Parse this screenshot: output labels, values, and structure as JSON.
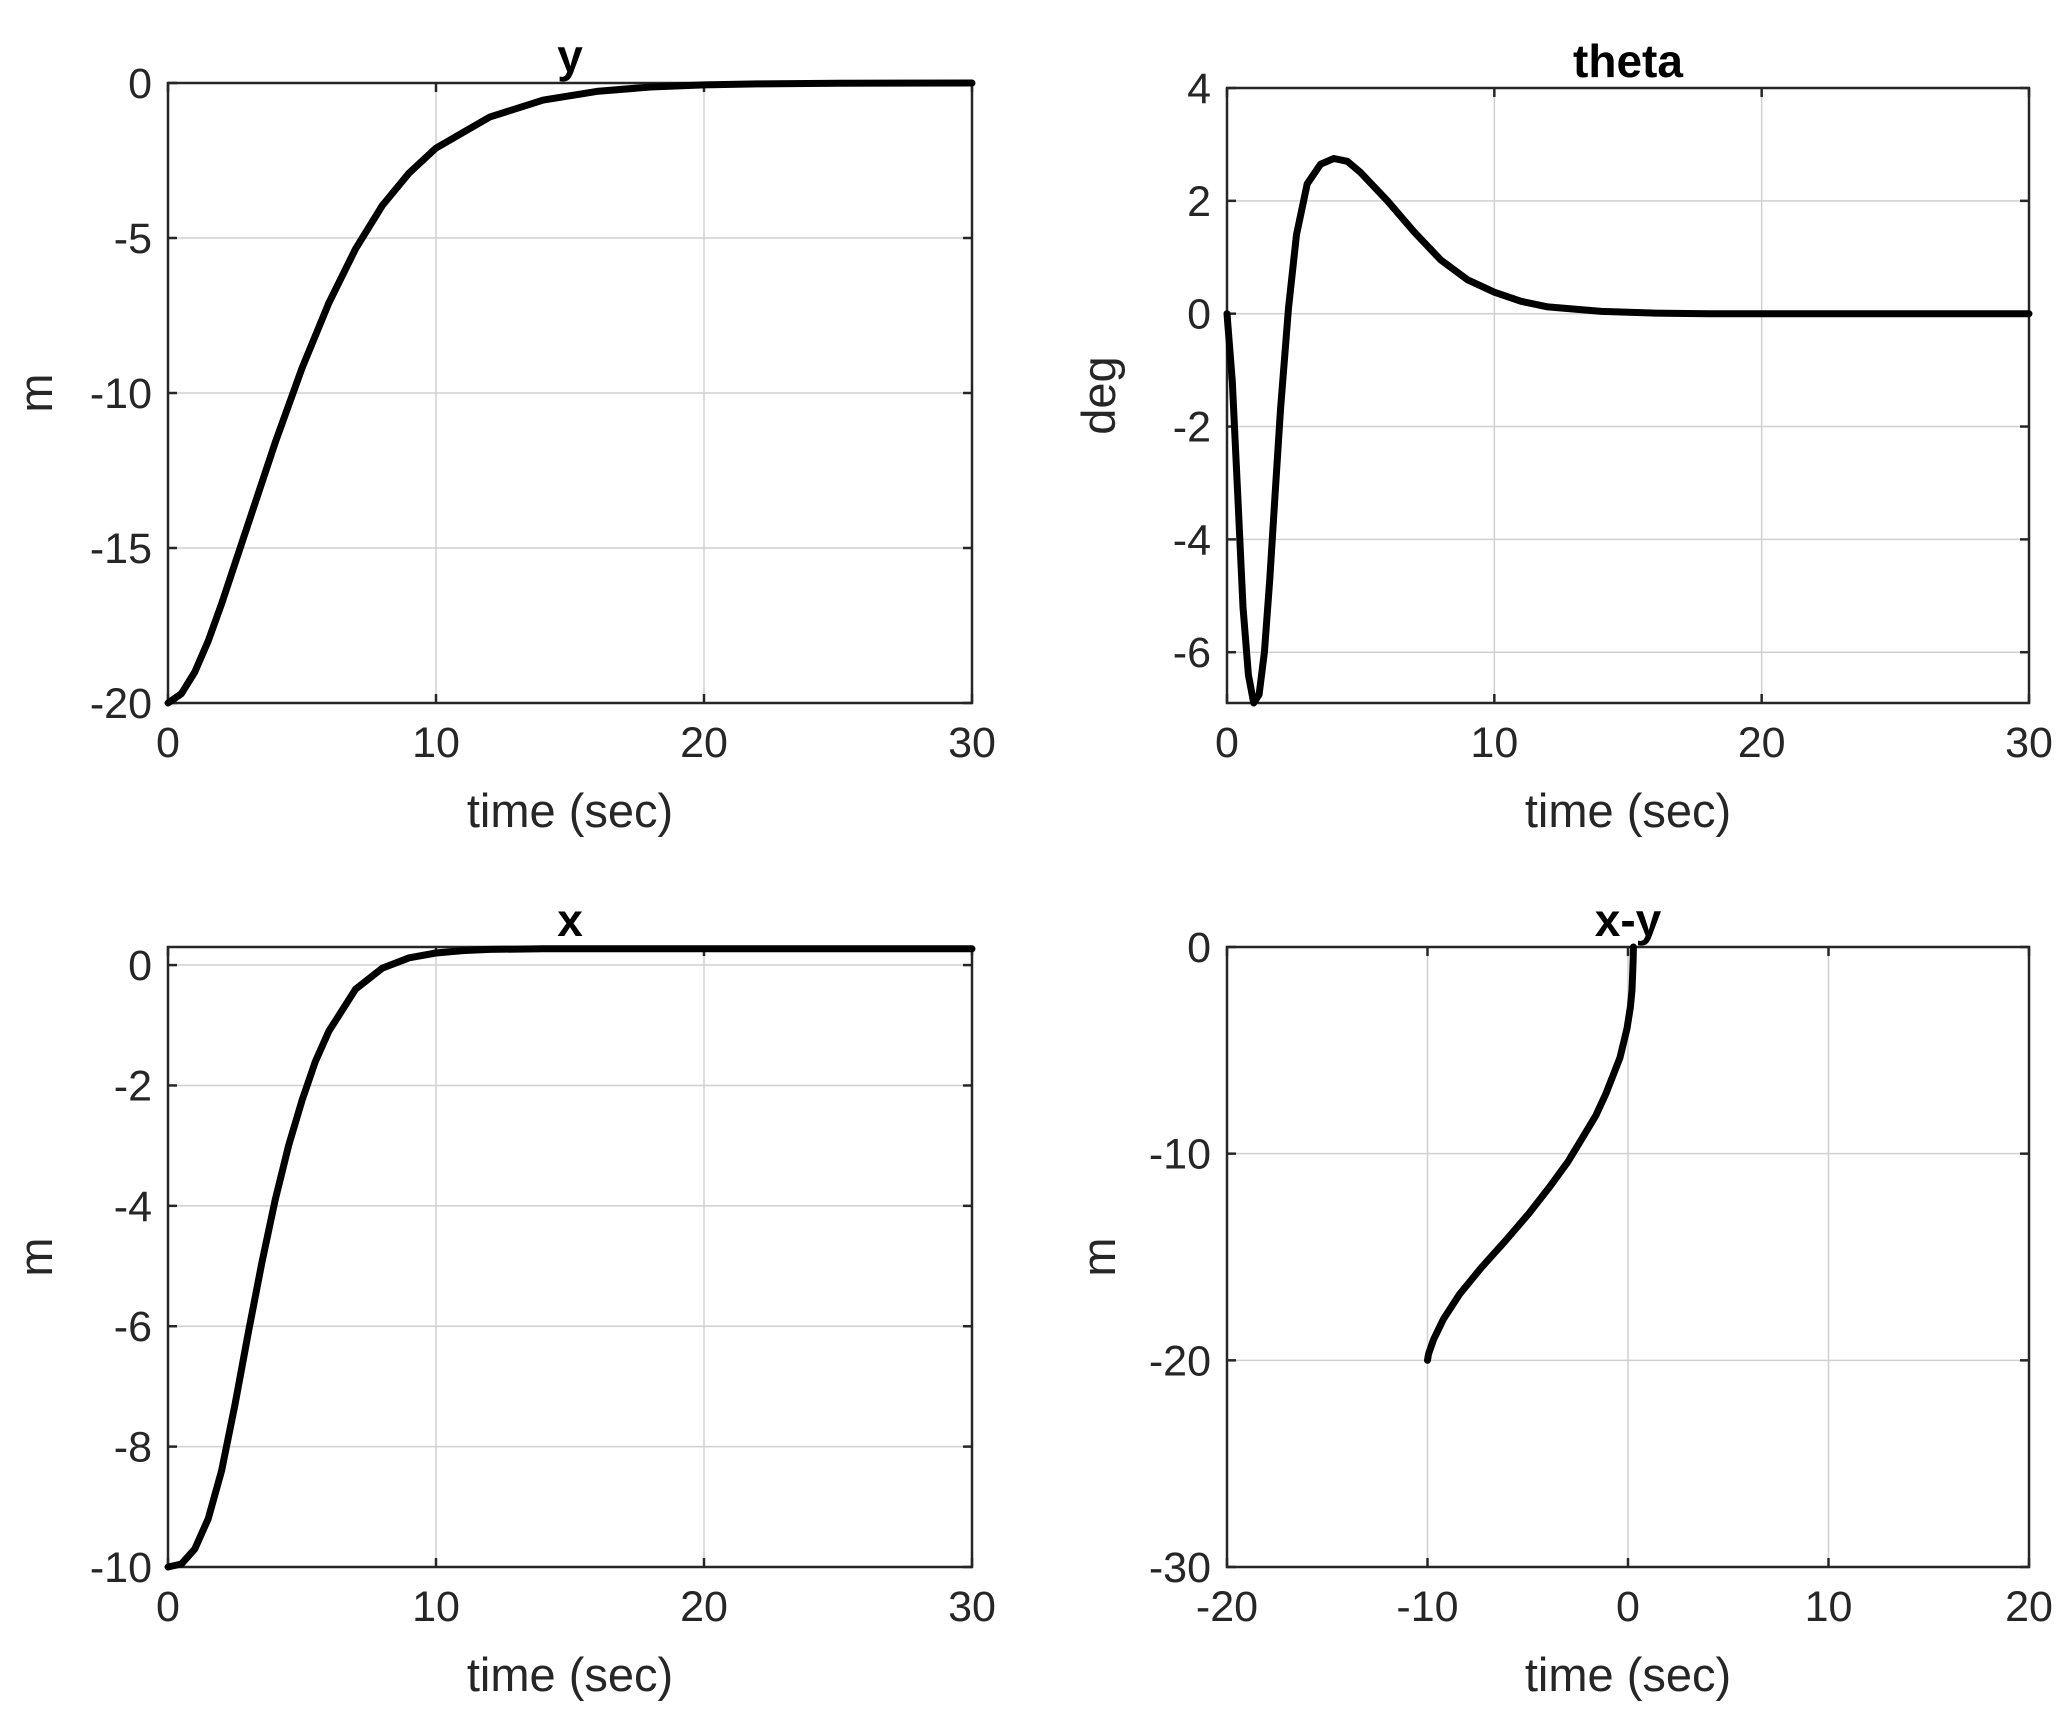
{
  "chart_data": [
    {
      "type": "line",
      "id": "y",
      "title": "y",
      "xlabel": "time (sec)",
      "ylabel": "m",
      "xlim": [
        0,
        30
      ],
      "ylim": [
        -20,
        0
      ],
      "xticks": [
        0,
        10,
        20,
        30
      ],
      "yticks": [
        0,
        -5,
        -10,
        -15,
        -20
      ],
      "grid": true,
      "series": [
        {
          "name": "y",
          "x": [
            0,
            0.5,
            1,
            1.5,
            2,
            2.5,
            3,
            4,
            5,
            6,
            7,
            8,
            9,
            10,
            12,
            14,
            16,
            18,
            20,
            22,
            25,
            30
          ],
          "y": [
            -20,
            -19.7,
            -19.0,
            -18.0,
            -16.8,
            -15.5,
            -14.2,
            -11.6,
            -9.2,
            -7.1,
            -5.35,
            -3.95,
            -2.9,
            -2.1,
            -1.1,
            -0.55,
            -0.27,
            -0.13,
            -0.06,
            -0.03,
            -0.01,
            0
          ]
        }
      ]
    },
    {
      "type": "line",
      "id": "theta",
      "title": "theta",
      "xlabel": "time (sec)",
      "ylabel": "deg",
      "xlim": [
        0,
        30
      ],
      "ylim": [
        -6.9,
        4
      ],
      "xticks": [
        0,
        10,
        20,
        30
      ],
      "yticks": [
        4,
        2,
        0,
        -2,
        -4,
        -6
      ],
      "grid": true,
      "series": [
        {
          "name": "theta",
          "x": [
            0,
            0.2,
            0.4,
            0.6,
            0.8,
            1.0,
            1.2,
            1.4,
            1.6,
            1.8,
            2.0,
            2.3,
            2.6,
            3.0,
            3.5,
            4.0,
            4.5,
            5.0,
            6.0,
            7.0,
            8.0,
            9.0,
            10.0,
            11.0,
            12.0,
            14.0,
            16.0,
            18.0,
            20.0,
            25.0,
            30.0
          ],
          "y": [
            0,
            -1.2,
            -3.2,
            -5.2,
            -6.4,
            -6.9,
            -6.75,
            -6.0,
            -4.7,
            -3.2,
            -1.7,
            0.1,
            1.4,
            2.3,
            2.65,
            2.75,
            2.7,
            2.5,
            2.0,
            1.45,
            0.95,
            0.6,
            0.38,
            0.22,
            0.12,
            0.04,
            0.01,
            0,
            0,
            0,
            0
          ]
        }
      ]
    },
    {
      "type": "line",
      "id": "x",
      "title": "x",
      "xlabel": "time (sec)",
      "ylabel": "m",
      "xlim": [
        0,
        30
      ],
      "ylim": [
        -10,
        0.3
      ],
      "xticks": [
        0,
        10,
        20,
        30
      ],
      "yticks": [
        0,
        -2,
        -4,
        -6,
        -8,
        -10
      ],
      "grid": true,
      "series": [
        {
          "name": "x",
          "x": [
            0,
            0.5,
            1,
            1.5,
            2,
            2.5,
            3,
            3.5,
            4,
            4.5,
            5,
            5.5,
            6,
            7,
            8,
            9,
            10,
            11,
            12,
            14,
            16,
            20,
            30
          ],
          "y": [
            -10,
            -9.95,
            -9.7,
            -9.2,
            -8.4,
            -7.3,
            -6.1,
            -4.95,
            -3.9,
            -3.0,
            -2.25,
            -1.6,
            -1.1,
            -0.4,
            -0.05,
            0.12,
            0.2,
            0.24,
            0.26,
            0.27,
            0.27,
            0.27,
            0.27
          ]
        }
      ]
    },
    {
      "type": "line",
      "id": "xy",
      "title": "x-y",
      "xlabel": "time (sec)",
      "ylabel": "m",
      "xlim": [
        -20,
        20
      ],
      "ylim": [
        -30,
        0
      ],
      "xticks": [
        -20,
        -10,
        0,
        10,
        20
      ],
      "yticks": [
        0,
        -10,
        -20,
        -30
      ],
      "grid": true,
      "series": [
        {
          "name": "x-y",
          "x": [
            -10,
            -9.95,
            -9.7,
            -9.2,
            -8.4,
            -7.3,
            -6.1,
            -4.95,
            -3.9,
            -3.0,
            -2.25,
            -1.6,
            -1.1,
            -0.4,
            -0.05,
            0.12,
            0.2,
            0.24,
            0.26,
            0.27
          ],
          "y": [
            -20,
            -19.7,
            -19.0,
            -18.0,
            -16.8,
            -15.5,
            -14.2,
            -12.9,
            -11.6,
            -10.4,
            -9.2,
            -8.15,
            -7.1,
            -5.35,
            -3.95,
            -2.9,
            -2.1,
            -1.1,
            -0.55,
            0
          ]
        }
      ]
    }
  ]
}
